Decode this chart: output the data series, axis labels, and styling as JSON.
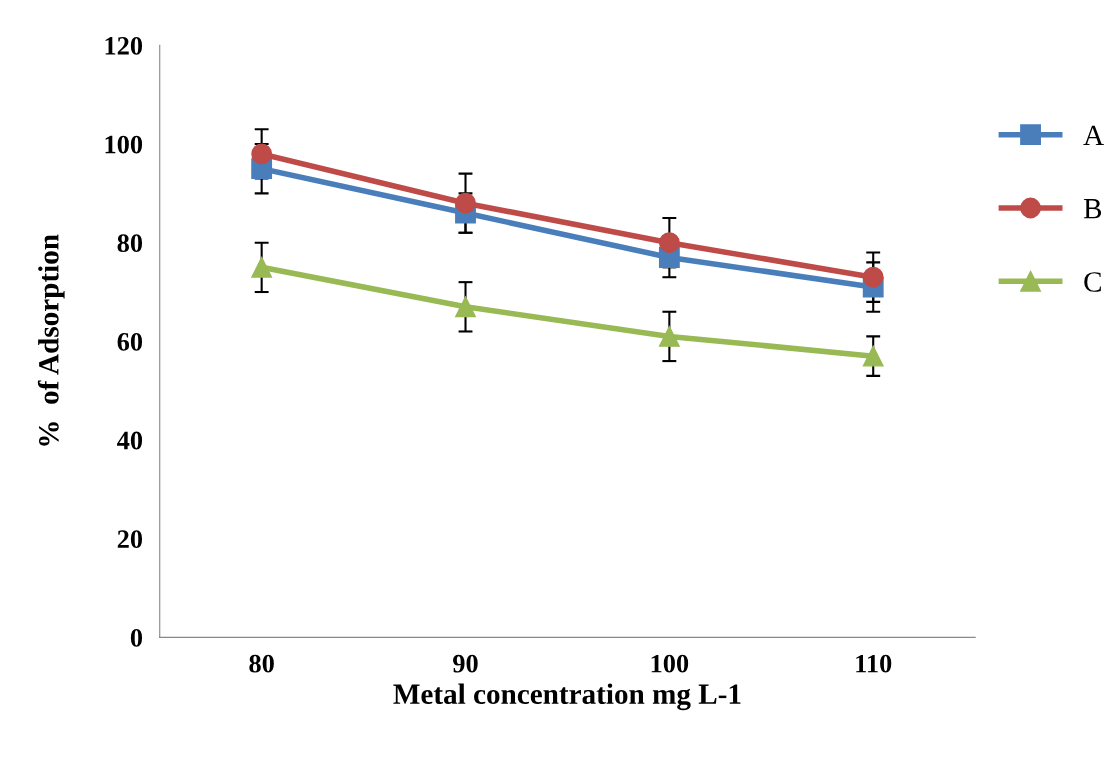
{
  "chart_data": {
    "type": "line",
    "xlabel": "Metal concentration mg L-1",
    "ylabel": "%  of Adsorption",
    "categories": [
      "80",
      "90",
      "100",
      "110"
    ],
    "series": [
      {
        "name": "A",
        "color": "#4a7ebb",
        "marker": "square",
        "values": [
          95,
          86,
          77,
          71
        ],
        "errors": [
          5,
          4,
          4,
          5
        ]
      },
      {
        "name": "B",
        "color": "#be4b48",
        "marker": "circle",
        "values": [
          98,
          88,
          80,
          73
        ],
        "errors": [
          5,
          6,
          5,
          5
        ]
      },
      {
        "name": "C",
        "color": "#98b954",
        "marker": "triangle",
        "values": [
          75,
          67,
          61,
          57
        ],
        "errors": [
          5,
          5,
          5,
          4
        ]
      }
    ],
    "ylim": [
      0,
      120
    ],
    "yticks": [
      0,
      20,
      40,
      60,
      80,
      100,
      120
    ],
    "grid": false,
    "legend": "right"
  }
}
